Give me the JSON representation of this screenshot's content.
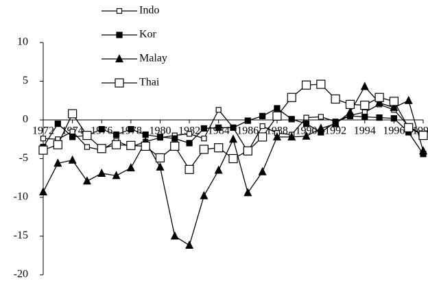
{
  "chart_data": {
    "type": "line",
    "x": [
      1972,
      1973,
      1974,
      1975,
      1976,
      1977,
      1978,
      1979,
      1980,
      1981,
      1982,
      1983,
      1984,
      1985,
      1986,
      1987,
      1988,
      1989,
      1990,
      1991,
      1992,
      1993,
      1994,
      1995,
      1996,
      1997,
      1998
    ],
    "xlim": [
      1972,
      1998
    ],
    "xticks": [
      1972,
      1974,
      1976,
      1978,
      1980,
      1982,
      1984,
      1986,
      1988,
      1990,
      1992,
      1994,
      1996,
      1998
    ],
    "ylim": [
      -20,
      10
    ],
    "yticks": [
      10,
      5,
      0,
      -5,
      -10,
      -15,
      -20
    ],
    "series": [
      {
        "name": "Indo",
        "color": "#000000",
        "marker": "small-open-square",
        "values": [
          -2.4,
          -2.5,
          -1.5,
          -3.5,
          -3.9,
          -2.7,
          -3.5,
          -2.8,
          -2.3,
          -2.0,
          -1.8,
          -2.4,
          1.3,
          -1.0,
          -4.1,
          -0.8,
          -1.7,
          -1.9,
          0.3,
          0.4,
          -0.2,
          0.6,
          1.0,
          2.0,
          1.3,
          -0.8,
          -2.0
        ]
      },
      {
        "name": "Kor",
        "color": "#000000",
        "marker": "filled-square",
        "values": [
          -3.5,
          -0.5,
          -2.2,
          -2.0,
          -1.2,
          -1.9,
          -1.2,
          -1.9,
          -2.2,
          -2.4,
          -3.0,
          -1.1,
          -1.0,
          -1.0,
          -0.1,
          0.5,
          1.5,
          0.1,
          -0.5,
          -1.6,
          -0.3,
          0.5,
          0.4,
          0.3,
          0.2,
          -1.6,
          -4.4
        ]
      },
      {
        "name": "Malay",
        "color": "#000000",
        "marker": "filled-triangle",
        "values": [
          -9.3,
          -5.6,
          -5.2,
          -7.9,
          -6.9,
          -7.2,
          -6.2,
          -2.8,
          -6.1,
          -15.0,
          -16.2,
          -9.8,
          -6.5,
          -2.5,
          -9.4,
          -6.7,
          -2.2,
          -2.2,
          -2.1,
          -1.1,
          -0.5,
          1.0,
          4.3,
          2.2,
          1.6,
          2.5,
          -4.0
        ]
      },
      {
        "name": "Thai",
        "color": "#000000",
        "marker": "open-square",
        "values": [
          -3.9,
          -3.2,
          0.8,
          -2.0,
          -3.7,
          -3.2,
          -3.3,
          -3.4,
          -4.9,
          -3.4,
          -6.4,
          -3.8,
          -3.6,
          -5.0,
          -4.0,
          -2.2,
          0.5,
          2.9,
          4.5,
          4.6,
          2.7,
          2.0,
          1.9,
          2.9,
          2.4,
          -1.0,
          -2.0
        ]
      }
    ]
  }
}
